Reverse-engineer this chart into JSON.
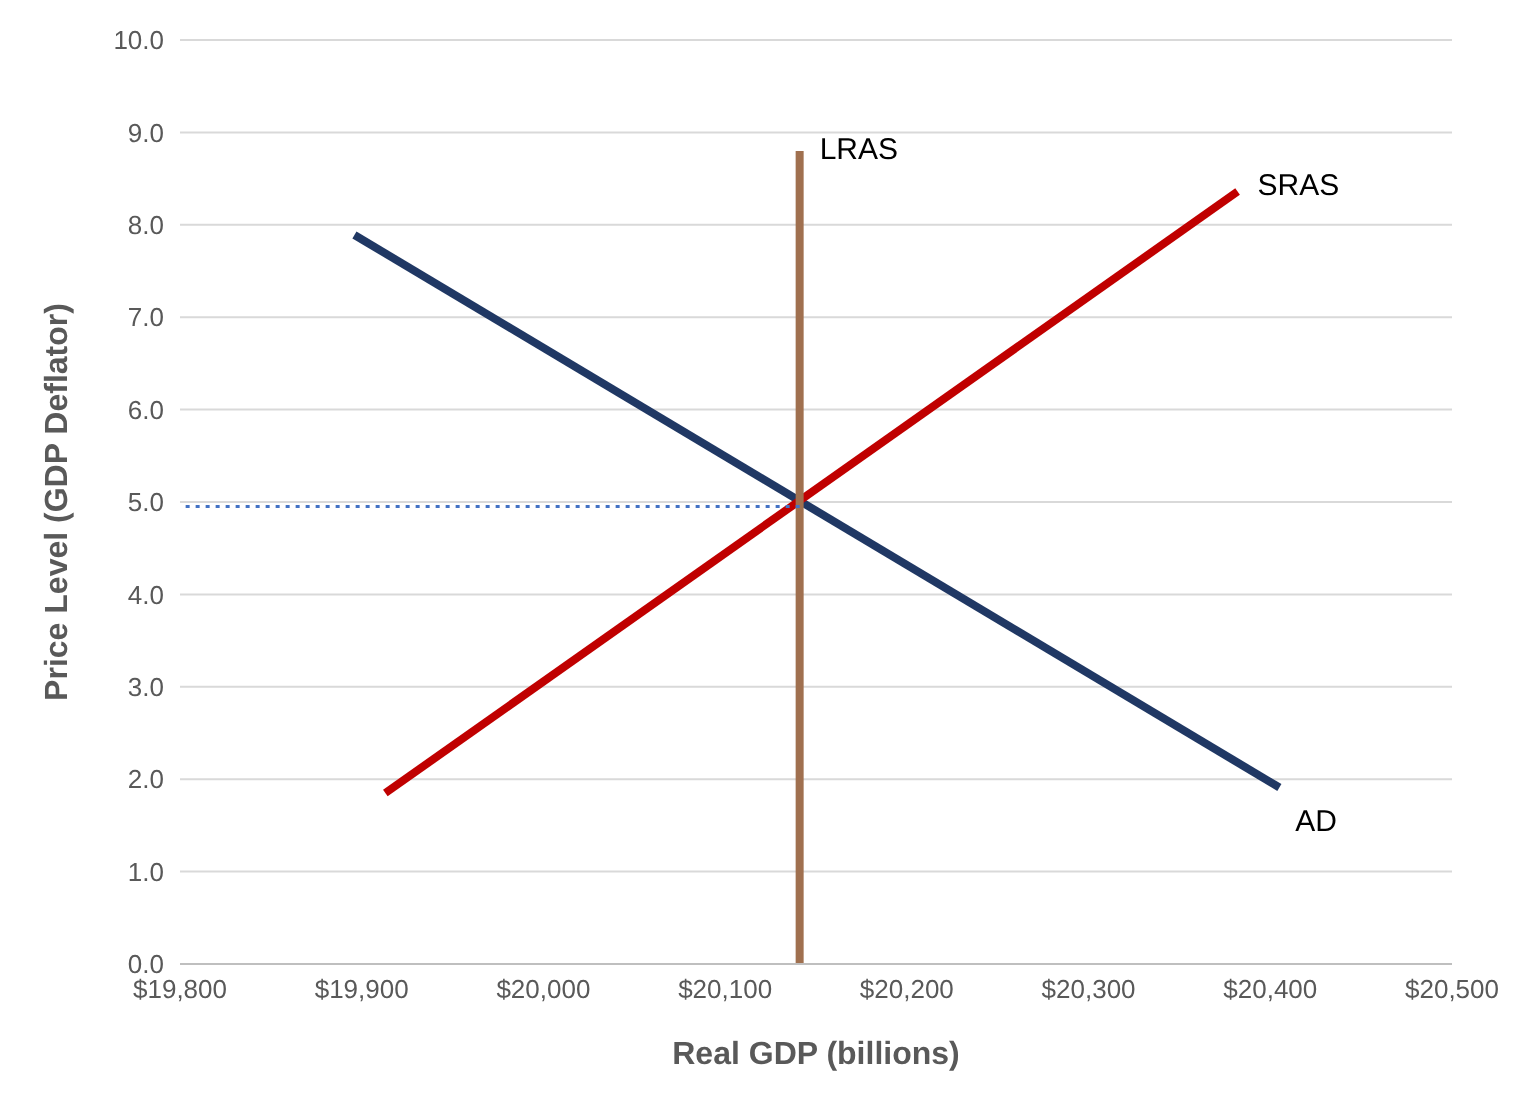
{
  "chart_data": {
    "type": "line",
    "xlabel": "Real GDP (billions)",
    "ylabel": "Price Level (GDP Deflator)",
    "xlim": [
      19800,
      20500
    ],
    "xticks": [
      {
        "value": 19800,
        "label": "$19,800"
      },
      {
        "value": 19900,
        "label": "$19,900"
      },
      {
        "value": 20000,
        "label": "$20,000"
      },
      {
        "value": 20100,
        "label": "$20,100"
      },
      {
        "value": 20200,
        "label": "$20,200"
      },
      {
        "value": 20300,
        "label": "$20,300"
      },
      {
        "value": 20400,
        "label": "$20,400"
      },
      {
        "value": 20500,
        "label": "$20,500"
      }
    ],
    "ylim": [
      0,
      10
    ],
    "yticks": [
      {
        "value": 0,
        "label": "0.0"
      },
      {
        "value": 1,
        "label": "1.0"
      },
      {
        "value": 2,
        "label": "2.0"
      },
      {
        "value": 3,
        "label": "3.0"
      },
      {
        "value": 4,
        "label": "4.0"
      },
      {
        "value": 5,
        "label": "5.0"
      },
      {
        "value": 6,
        "label": "6.0"
      },
      {
        "value": 7,
        "label": "7.0"
      },
      {
        "value": 8,
        "label": "8.0"
      },
      {
        "value": 9,
        "label": "9.0"
      },
      {
        "value": 10,
        "label": "10.0"
      }
    ],
    "grid": "y",
    "legend": false,
    "marker": "none",
    "series": [
      {
        "color": "#4472c4",
        "line_style": "dotted",
        "x": [
          19800,
          20141
        ],
        "values": [
          4.95,
          4.95
        ]
      },
      {
        "name": "AD",
        "color": "#203864",
        "x": [
          19896,
          20405
        ],
        "values": [
          7.89,
          1.91
        ]
      },
      {
        "name": "SRAS",
        "color": "#c00000",
        "x": [
          19913,
          20382
        ],
        "values": [
          1.85,
          8.36
        ]
      },
      {
        "name": "LRAS",
        "color": "#a0704f",
        "x": [
          20141,
          20141
        ],
        "values": [
          0,
          8.8
        ]
      }
    ]
  }
}
